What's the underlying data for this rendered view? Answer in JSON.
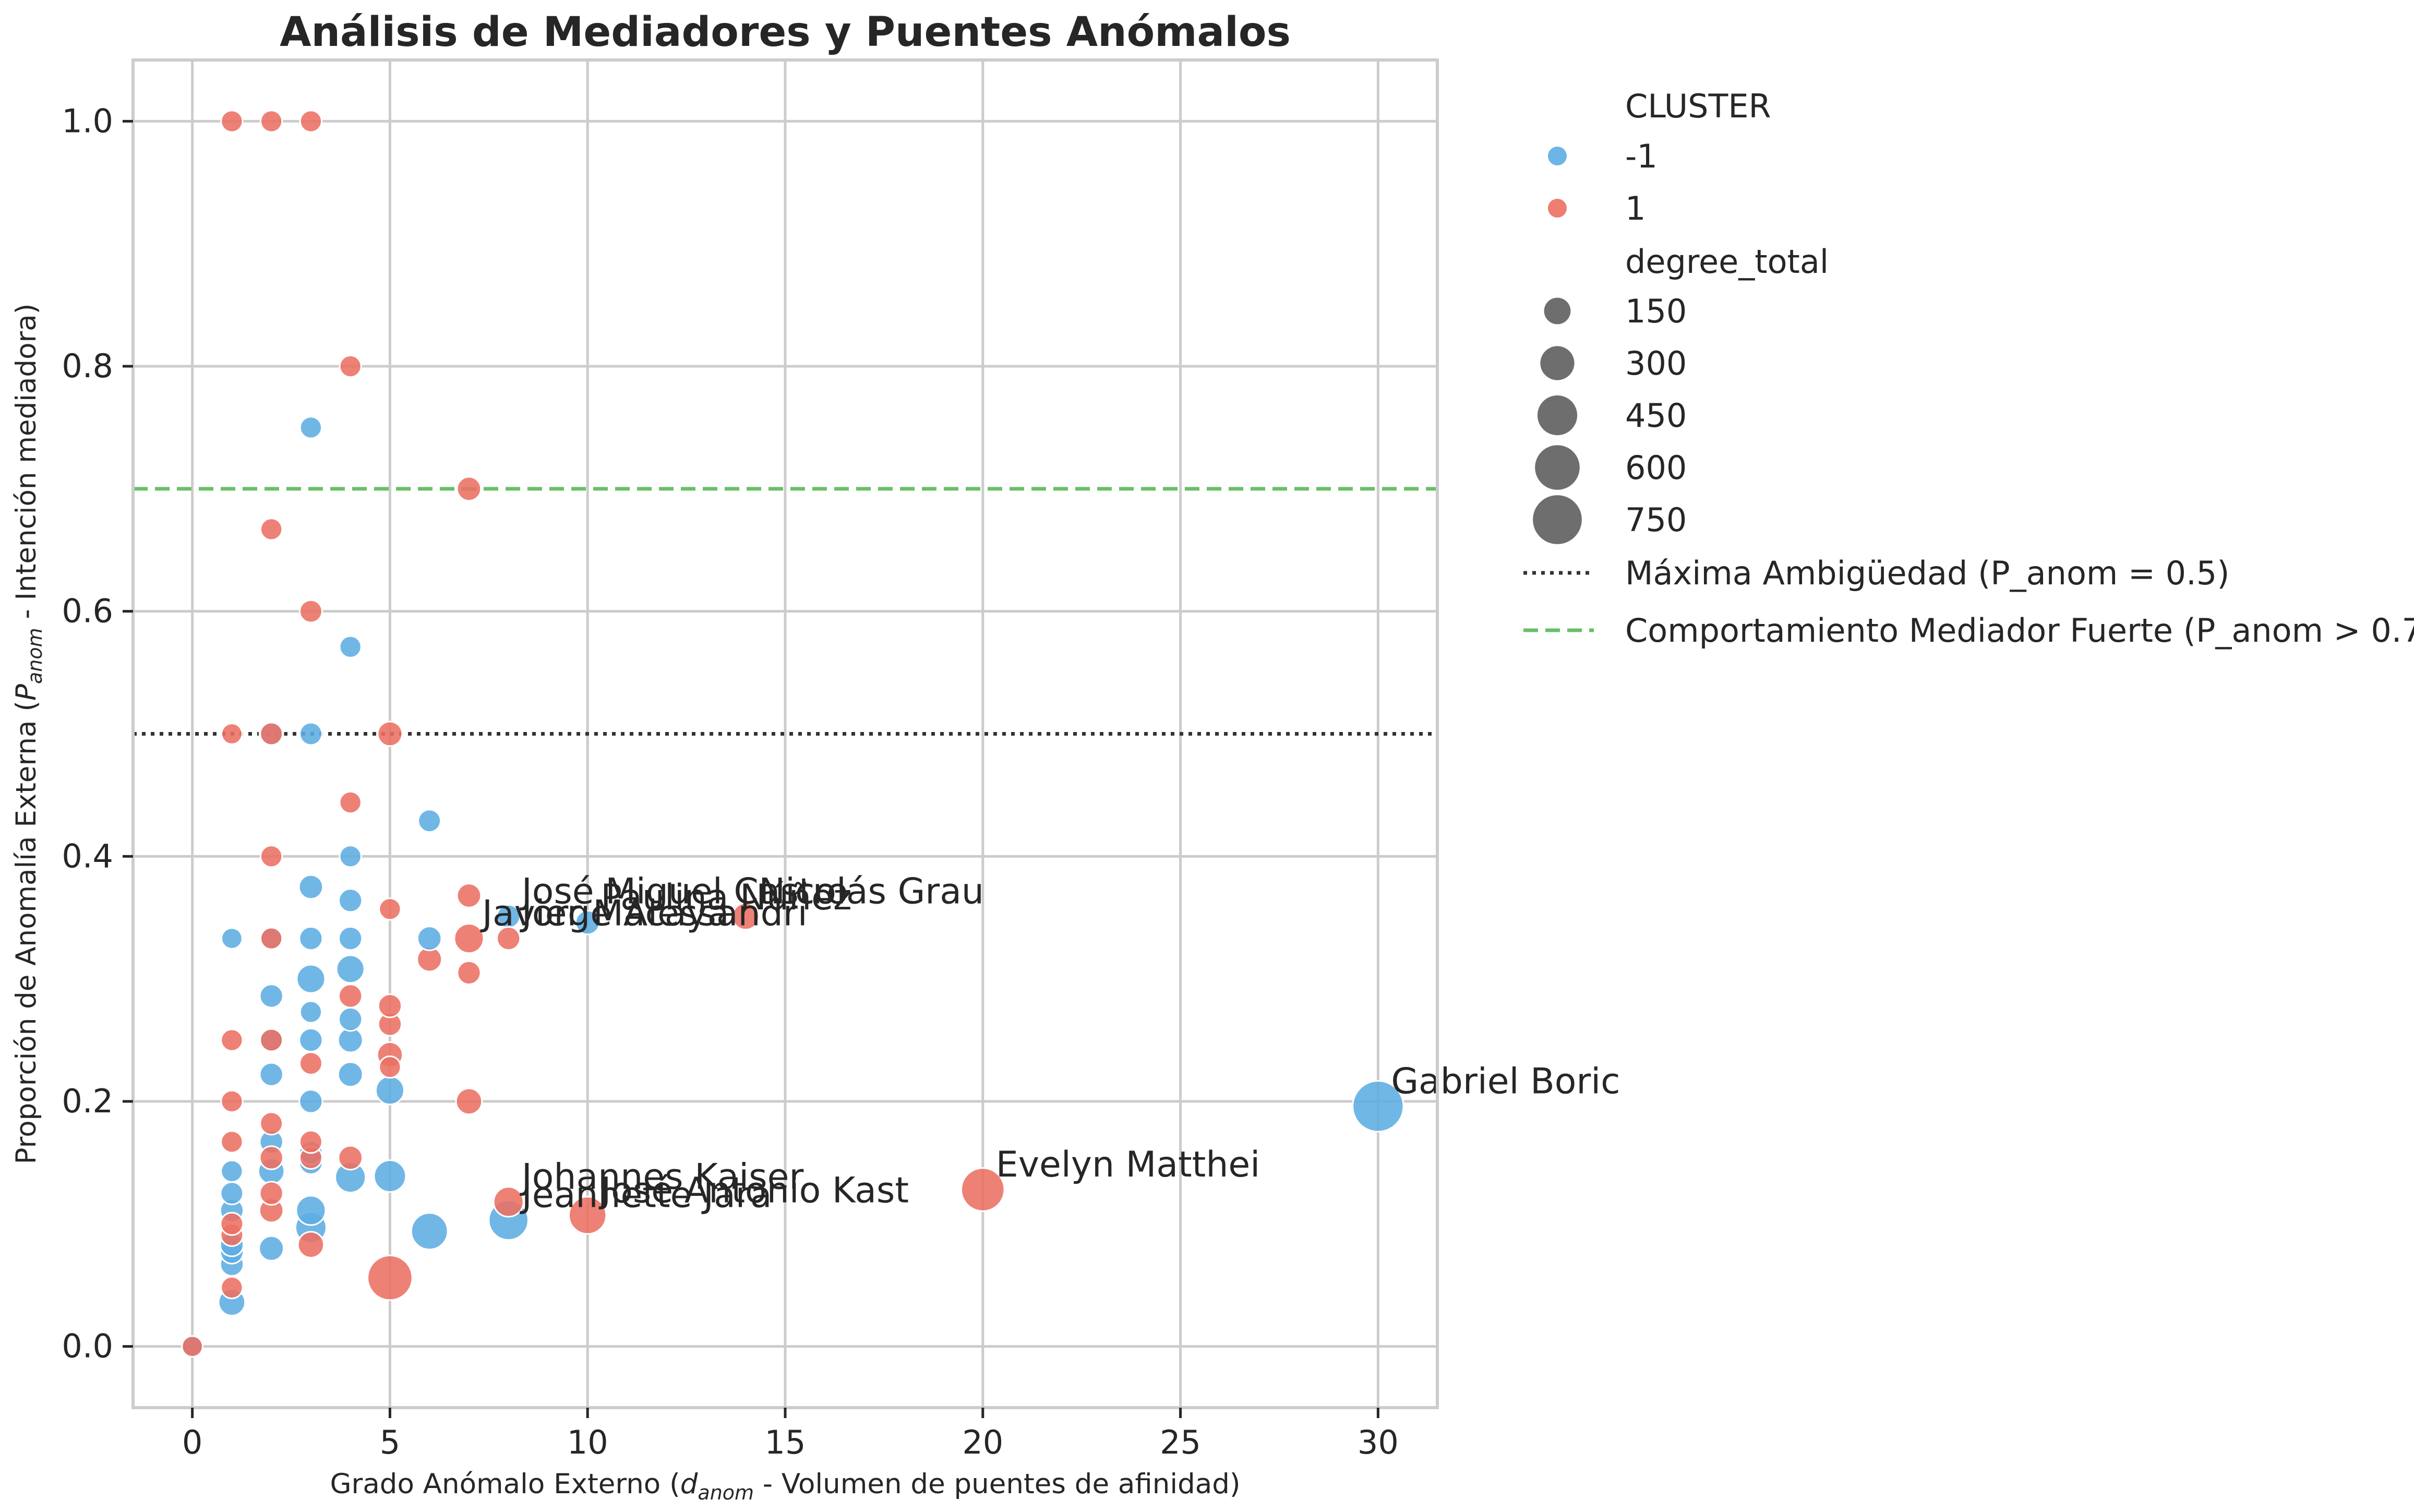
{
  "chart_data": {
    "type": "scatter",
    "title": "Análisis de Mediadores y Puentes Anómalos",
    "xlabel": "Grado Anómalo Externo (d_anom - Volumen de puentes de afinidad)",
    "ylabel": "Proporción de Anomalía Externa (P_anom - Intención mediadora)",
    "xlim": [
      -1.5,
      31.5
    ],
    "ylim": [
      -0.05,
      1.05
    ],
    "x_ticks": [
      "0",
      "5",
      "10",
      "15",
      "20",
      "25",
      "30"
    ],
    "y_ticks": [
      "0.0",
      "0.2",
      "0.4",
      "0.6",
      "0.8",
      "1.0"
    ],
    "grid": true,
    "legend_placement": "outside-right",
    "legend": {
      "hue_title": "CLUSTER",
      "hue_entries": [
        {
          "label": "-1",
          "color": "#5dade2"
        },
        {
          "label": "1",
          "color": "#ec7063"
        }
      ],
      "size_title": "degree_total",
      "size_entries": [
        "150",
        "300",
        "450",
        "600",
        "750"
      ],
      "line_entries": [
        {
          "label": "Máxima Ambigüedad (P_anom = 0.5)",
          "color": "#333333",
          "style": "dotted"
        },
        {
          "label": "Comportamiento Mediador Fuerte (P_anom > 0.7)",
          "color": "#6abf69",
          "style": "dashed"
        }
      ]
    },
    "reference_lines": [
      {
        "y": 0.5,
        "style": "dotted",
        "color": "#333333"
      },
      {
        "y": 0.7,
        "style": "dashed",
        "color": "#6abf69"
      }
    ],
    "annotations": [
      {
        "text": "Gabriel Boric",
        "x": 30,
        "y": 0.196
      },
      {
        "text": "Evelyn Matthei",
        "x": 20,
        "y": 0.128
      },
      {
        "text": "José Antonio Kast",
        "x": 10,
        "y": 0.107
      },
      {
        "text": "Johannes Kaiser",
        "x": 8,
        "y": 0.118
      },
      {
        "text": "Jeannette Jara",
        "x": 8,
        "y": 0.103
      },
      {
        "text": "Nicolás Grau",
        "x": 14,
        "y": 0.351
      },
      {
        "text": "José Miguel Castro",
        "x": 8,
        "y": 0.351
      },
      {
        "text": "Paulina Núñez",
        "x": 10,
        "y": 0.346
      },
      {
        "text": "Javier Macaya",
        "x": 7,
        "y": 0.333
      },
      {
        "text": "Jorge Alessandri",
        "x": 8,
        "y": 0.333
      }
    ],
    "series": [
      {
        "name": "-1",
        "color": "#5dade2",
        "points": [
          {
            "x": 30,
            "y": 0.196,
            "size": 820
          },
          {
            "x": 8,
            "y": 0.103,
            "size": 440
          },
          {
            "x": 6,
            "y": 0.094,
            "size": 360
          },
          {
            "x": 5,
            "y": 0.139,
            "size": 250
          },
          {
            "x": 5,
            "y": 0.209,
            "size": 180
          },
          {
            "x": 4,
            "y": 0.138,
            "size": 220
          },
          {
            "x": 4,
            "y": 0.308,
            "size": 170
          },
          {
            "x": 4,
            "y": 0.222,
            "size": 120
          },
          {
            "x": 4,
            "y": 0.25,
            "size": 120
          },
          {
            "x": 4,
            "y": 0.267,
            "size": 100
          },
          {
            "x": 4,
            "y": 0.333,
            "size": 100
          },
          {
            "x": 4,
            "y": 0.364,
            "size": 100
          },
          {
            "x": 4,
            "y": 0.4,
            "size": 80
          },
          {
            "x": 4,
            "y": 0.571,
            "size": 80
          },
          {
            "x": 6,
            "y": 0.333,
            "size": 110
          },
          {
            "x": 6,
            "y": 0.429,
            "size": 90
          },
          {
            "x": 8,
            "y": 0.351,
            "size": 100
          },
          {
            "x": 10,
            "y": 0.346,
            "size": 110
          },
          {
            "x": 3,
            "y": 0.097,
            "size": 230
          },
          {
            "x": 3,
            "y": 0.111,
            "size": 200
          },
          {
            "x": 3,
            "y": 0.15,
            "size": 100
          },
          {
            "x": 3,
            "y": 0.158,
            "size": 100
          },
          {
            "x": 3,
            "y": 0.2,
            "size": 100
          },
          {
            "x": 3,
            "y": 0.25,
            "size": 100
          },
          {
            "x": 3,
            "y": 0.273,
            "size": 80
          },
          {
            "x": 3,
            "y": 0.3,
            "size": 180
          },
          {
            "x": 3,
            "y": 0.333,
            "size": 100
          },
          {
            "x": 3,
            "y": 0.375,
            "size": 110
          },
          {
            "x": 3,
            "y": 0.5,
            "size": 90
          },
          {
            "x": 3,
            "y": 0.75,
            "size": 80
          },
          {
            "x": 2,
            "y": 0.08,
            "size": 120
          },
          {
            "x": 2,
            "y": 0.143,
            "size": 140
          },
          {
            "x": 2,
            "y": 0.167,
            "size": 100
          },
          {
            "x": 2,
            "y": 0.222,
            "size": 100
          },
          {
            "x": 2,
            "y": 0.25,
            "size": 100
          },
          {
            "x": 2,
            "y": 0.286,
            "size": 100
          },
          {
            "x": 2,
            "y": 0.333,
            "size": 80
          },
          {
            "x": 2,
            "y": 0.5,
            "size": 110
          },
          {
            "x": 1,
            "y": 0.036,
            "size": 150
          },
          {
            "x": 1,
            "y": 0.067,
            "size": 100
          },
          {
            "x": 1,
            "y": 0.077,
            "size": 100
          },
          {
            "x": 1,
            "y": 0.083,
            "size": 100
          },
          {
            "x": 1,
            "y": 0.111,
            "size": 100
          },
          {
            "x": 1,
            "y": 0.125,
            "size": 90
          },
          {
            "x": 1,
            "y": 0.143,
            "size": 80
          },
          {
            "x": 1,
            "y": 0.333,
            "size": 70
          },
          {
            "x": 0,
            "y": 0.0,
            "size": 70
          }
        ]
      },
      {
        "name": "1",
        "color": "#ec7063",
        "points": [
          {
            "x": 20,
            "y": 0.128,
            "size": 550
          },
          {
            "x": 10,
            "y": 0.107,
            "size": 380
          },
          {
            "x": 8,
            "y": 0.118,
            "size": 210
          },
          {
            "x": 5,
            "y": 0.056,
            "size": 600
          },
          {
            "x": 14,
            "y": 0.351,
            "size": 150
          },
          {
            "x": 7,
            "y": 0.333,
            "size": 200
          },
          {
            "x": 7,
            "y": 0.368,
            "size": 110
          },
          {
            "x": 7,
            "y": 0.305,
            "size": 100
          },
          {
            "x": 7,
            "y": 0.2,
            "size": 140
          },
          {
            "x": 7,
            "y": 0.7,
            "size": 110
          },
          {
            "x": 8,
            "y": 0.333,
            "size": 100
          },
          {
            "x": 6,
            "y": 0.316,
            "size": 120
          },
          {
            "x": 5,
            "y": 0.228,
            "size": 80
          },
          {
            "x": 5,
            "y": 0.238,
            "size": 130
          },
          {
            "x": 5,
            "y": 0.263,
            "size": 100
          },
          {
            "x": 5,
            "y": 0.278,
            "size": 100
          },
          {
            "x": 5,
            "y": 0.357,
            "size": 80
          },
          {
            "x": 5,
            "y": 0.5,
            "size": 120
          },
          {
            "x": 4,
            "y": 0.154,
            "size": 110
          },
          {
            "x": 4,
            "y": 0.286,
            "size": 100
          },
          {
            "x": 4,
            "y": 0.444,
            "size": 80
          },
          {
            "x": 4,
            "y": 0.8,
            "size": 80
          },
          {
            "x": 3,
            "y": 0.083,
            "size": 140
          },
          {
            "x": 3,
            "y": 0.154,
            "size": 90
          },
          {
            "x": 3,
            "y": 0.167,
            "size": 90
          },
          {
            "x": 3,
            "y": 0.231,
            "size": 90
          },
          {
            "x": 3,
            "y": 0.6,
            "size": 90
          },
          {
            "x": 3,
            "y": 1.0,
            "size": 80
          },
          {
            "x": 2,
            "y": 0.111,
            "size": 110
          },
          {
            "x": 2,
            "y": 0.125,
            "size": 100
          },
          {
            "x": 2,
            "y": 0.154,
            "size": 100
          },
          {
            "x": 2,
            "y": 0.182,
            "size": 90
          },
          {
            "x": 2,
            "y": 0.25,
            "size": 90
          },
          {
            "x": 2,
            "y": 0.333,
            "size": 80
          },
          {
            "x": 2,
            "y": 0.4,
            "size": 80
          },
          {
            "x": 2,
            "y": 0.5,
            "size": 90
          },
          {
            "x": 2,
            "y": 0.667,
            "size": 80
          },
          {
            "x": 2,
            "y": 1.0,
            "size": 80
          },
          {
            "x": 1,
            "y": 0.048,
            "size": 80
          },
          {
            "x": 1,
            "y": 0.091,
            "size": 90
          },
          {
            "x": 1,
            "y": 0.1,
            "size": 90
          },
          {
            "x": 1,
            "y": 0.167,
            "size": 80
          },
          {
            "x": 1,
            "y": 0.2,
            "size": 80
          },
          {
            "x": 1,
            "y": 0.25,
            "size": 80
          },
          {
            "x": 1,
            "y": 0.5,
            "size": 70
          },
          {
            "x": 1,
            "y": 1.0,
            "size": 80
          },
          {
            "x": 0,
            "y": 0.0,
            "size": 70
          }
        ]
      }
    ]
  }
}
